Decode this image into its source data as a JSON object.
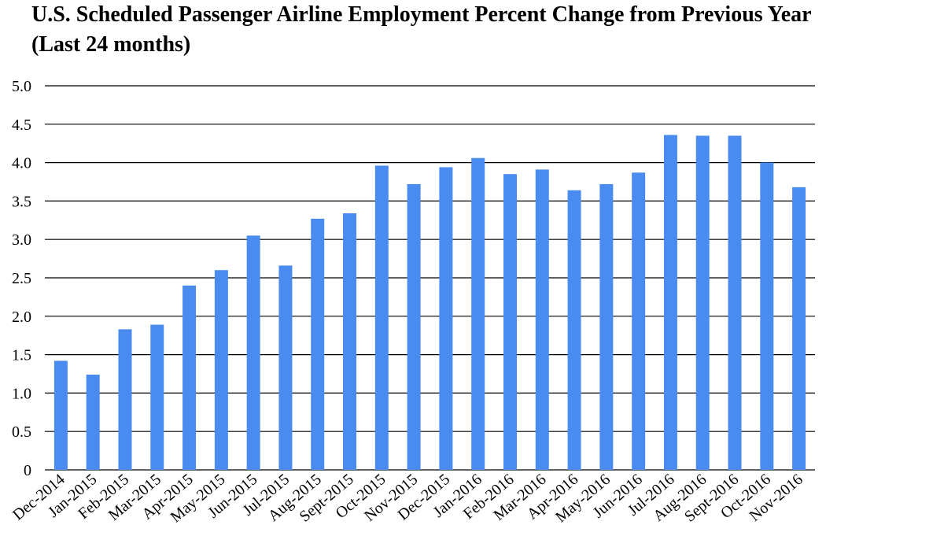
{
  "chart_data": {
    "type": "bar",
    "title": "U.S. Scheduled Passenger Airline Employment Percent Change from Previous Year",
    "subtitle": "(Last 24 months)",
    "xlabel": "",
    "ylabel": "",
    "ylim": [
      0,
      5.0
    ],
    "yticks": [
      "0",
      "0.5",
      "1.0",
      "1.5",
      "2.0",
      "2.5",
      "3.0",
      "3.5",
      "4.0",
      "4.5",
      "5.0"
    ],
    "grid": true,
    "legend": "none",
    "bar_color": "#4a8bf0",
    "categories": [
      "Dec-2014",
      "Jan-2015",
      "Feb-2015",
      "Mar-2015",
      "Apr-2015",
      "May-2015",
      "Jun-2015",
      "Jul-2015",
      "Aug-2015",
      "Sept-2015",
      "Oct-2015",
      "Nov-2015",
      "Dec-2015",
      "Jan-2016",
      "Feb-2016",
      "Mar-2016",
      "Apr-2016",
      "May-2016",
      "Jun-2016",
      "Jul-2016",
      "Aug-2016",
      "Sept-2016",
      "Oct-2016",
      "Nov-2016"
    ],
    "values": [
      1.42,
      1.24,
      1.83,
      1.89,
      2.4,
      2.6,
      3.05,
      2.66,
      3.27,
      3.34,
      3.96,
      3.72,
      3.94,
      4.06,
      3.85,
      3.91,
      3.64,
      3.72,
      3.87,
      4.36,
      4.35,
      4.35,
      4.0,
      3.68
    ]
  }
}
